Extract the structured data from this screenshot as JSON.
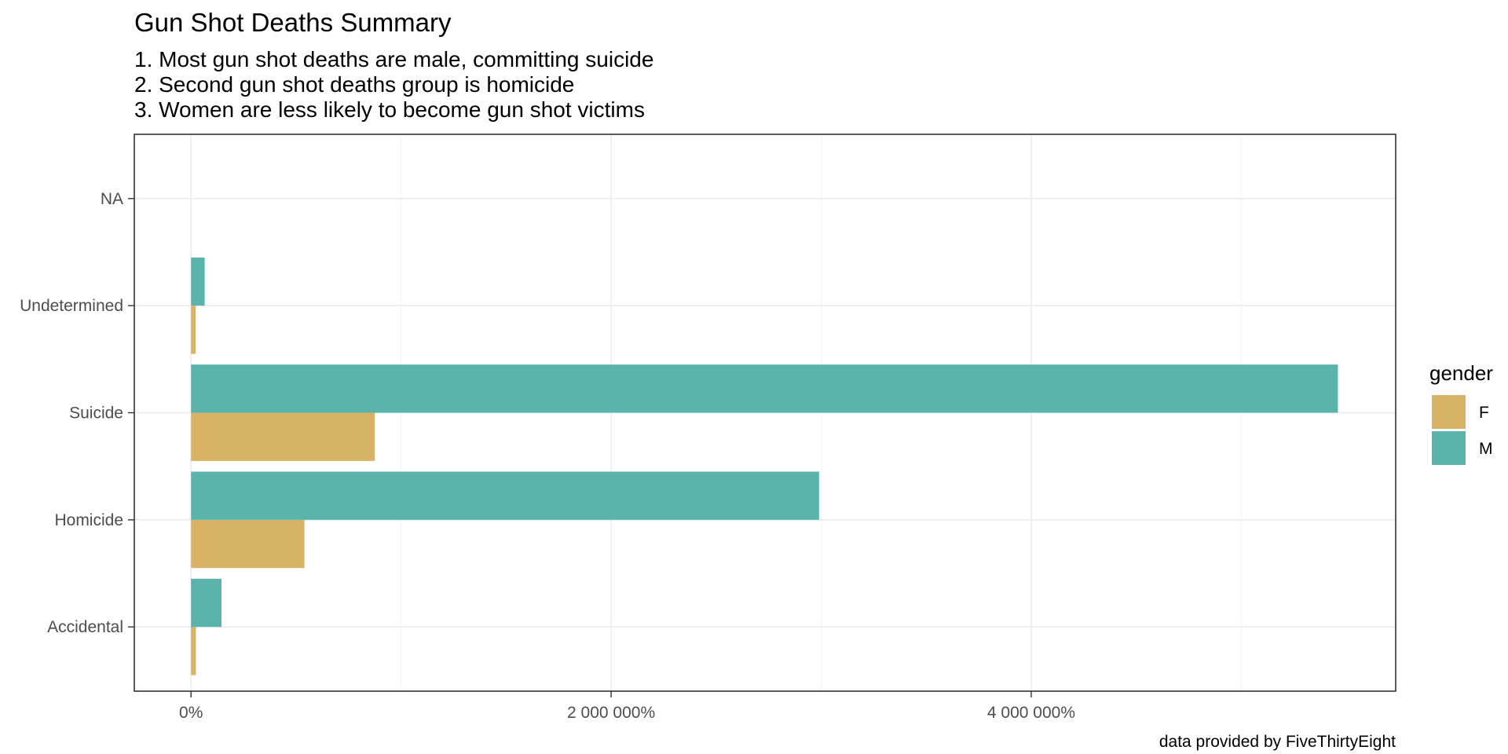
{
  "chart_data": {
    "type": "bar",
    "orientation": "horizontal",
    "title": "Gun Shot Deaths Summary",
    "subtitle_lines": [
      "1. Most gun shot deaths are male, committing suicide",
      "2. Second gun shot deaths group is homicide",
      "3. Women are less likely to become gun shot victims"
    ],
    "caption": "data provided by FiveThirtyEight",
    "xlabel": "",
    "ylabel": "",
    "categories": [
      "Accidental",
      "Homicide",
      "Suicide",
      "Undetermined",
      "NA"
    ],
    "series": [
      {
        "name": "F",
        "color": "#d8b365",
        "values": [
          23000,
          540000,
          875000,
          22000,
          0
        ]
      },
      {
        "name": "M",
        "color": "#5ab4ac",
        "values": [
          145000,
          2990000,
          5460000,
          65000,
          0
        ]
      }
    ],
    "xlim": [
      -270000,
      5735000
    ],
    "x_ticks": [
      {
        "value": 0,
        "label": "0%"
      },
      {
        "value": 2000000,
        "label": "2 000 000%"
      },
      {
        "value": 4000000,
        "label": "4 000 000%"
      }
    ],
    "x_minor_ticks": [
      1000000,
      3000000,
      5000000
    ],
    "grid": true,
    "legend": {
      "title": "gender",
      "position": "right"
    }
  }
}
